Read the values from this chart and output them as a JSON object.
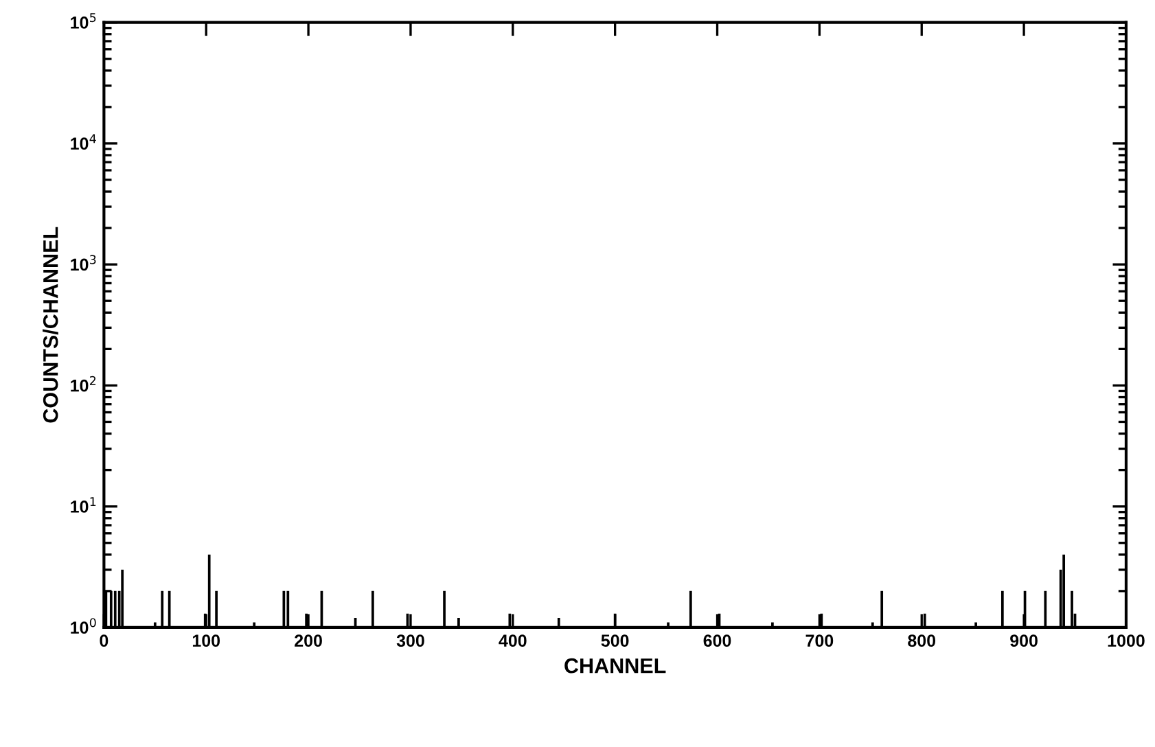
{
  "chart_data": {
    "type": "bar",
    "xlabel": "CHANNEL",
    "ylabel": "COUNTS/CHANNEL",
    "log": "y",
    "color": "#000000",
    "x": [
      2,
      7,
      11,
      15,
      18,
      50,
      57,
      64,
      99,
      103,
      110,
      147,
      176,
      180,
      198,
      213,
      246,
      263,
      297,
      333,
      347,
      397,
      445,
      500,
      552,
      574,
      602,
      654,
      702,
      752,
      761,
      803,
      853,
      879,
      901,
      921,
      936,
      939,
      947,
      950
    ],
    "values": [
      2,
      2,
      2,
      2,
      3,
      1.1,
      2,
      2,
      1.3,
      4,
      2,
      1.1,
      2,
      2,
      1.3,
      2,
      1.2,
      2,
      1.3,
      2,
      1.2,
      1.3,
      1.2,
      1.3,
      1.1,
      2,
      1.3,
      1.1,
      1.3,
      1.1,
      2,
      1.3,
      1.1,
      2,
      2,
      2,
      3,
      4,
      2,
      1.3
    ],
    "xlim": [
      0,
      1000
    ],
    "xticks": [
      0,
      100,
      200,
      300,
      400,
      500,
      600,
      700,
      800,
      900,
      1000
    ],
    "ylim": [
      1,
      100000
    ],
    "yticks": [
      {
        "value": 1,
        "label": "10$^{0}$"
      },
      {
        "value": 10,
        "label": "10$^{1}$"
      },
      {
        "value": 100,
        "label": "10$^{2}$"
      },
      {
        "value": 1000,
        "label": "10$^{3}$"
      },
      {
        "value": 10000,
        "label": "10$^{4}$"
      },
      {
        "value": 100000,
        "label": "10$^{5}$"
      }
    ],
    "grid": false,
    "legend": false
  }
}
